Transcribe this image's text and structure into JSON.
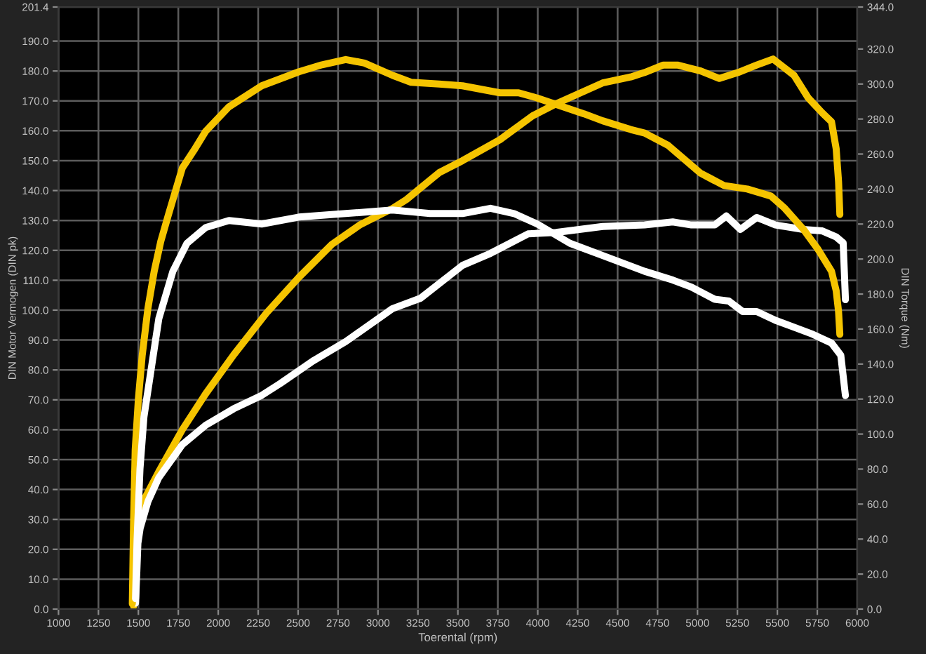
{
  "chart_data": {
    "type": "line",
    "xlabel": "Toerental (rpm)",
    "ylabel": "DIN Motor Vermogen (DIN pk)",
    "y2label": "DIN Torque (Nm)",
    "xlim": [
      1000,
      6000
    ],
    "xticks": [
      1000,
      1250,
      1500,
      1750,
      2000,
      2250,
      2500,
      2750,
      3000,
      3250,
      3500,
      3750,
      4000,
      4250,
      4500,
      4750,
      5000,
      5250,
      5500,
      5750,
      6000
    ],
    "ylim": [
      0,
      201.4
    ],
    "yticks": [
      {
        "value": 0,
        "label": "0.0"
      },
      {
        "value": 10,
        "label": "10.0"
      },
      {
        "value": 20,
        "label": "20.0"
      },
      {
        "value": 30,
        "label": "30.0"
      },
      {
        "value": 40,
        "label": "40.0"
      },
      {
        "value": 50,
        "label": "50.0"
      },
      {
        "value": 60,
        "label": "60.0"
      },
      {
        "value": 70,
        "label": "70.0"
      },
      {
        "value": 80,
        "label": "80.0"
      },
      {
        "value": 90,
        "label": "90.0"
      },
      {
        "value": 100,
        "label": "100.0"
      },
      {
        "value": 110,
        "label": "110.0"
      },
      {
        "value": 120,
        "label": "120.0"
      },
      {
        "value": 130,
        "label": "130.0"
      },
      {
        "value": 140,
        "label": "140.0"
      },
      {
        "value": 150,
        "label": "150.0"
      },
      {
        "value": 160,
        "label": "160.0"
      },
      {
        "value": 170,
        "label": "170.0"
      },
      {
        "value": 180,
        "label": "180.0"
      },
      {
        "value": 190,
        "label": "190.0"
      },
      {
        "value": 201.4,
        "label": "201.4"
      }
    ],
    "y2lim": [
      0,
      344
    ],
    "y2ticks": [
      {
        "value": 0,
        "label": "0.0"
      },
      {
        "value": 20,
        "label": "20.0"
      },
      {
        "value": 40,
        "label": "40.0"
      },
      {
        "value": 60,
        "label": "60.0"
      },
      {
        "value": 80,
        "label": "80.0"
      },
      {
        "value": 100,
        "label": "100.0"
      },
      {
        "value": 120,
        "label": "120.0"
      },
      {
        "value": 140,
        "label": "140.0"
      },
      {
        "value": 160,
        "label": "160.0"
      },
      {
        "value": 180,
        "label": "180.0"
      },
      {
        "value": 200,
        "label": "200.0"
      },
      {
        "value": 220,
        "label": "220.0"
      },
      {
        "value": 240,
        "label": "240.0"
      },
      {
        "value": 260,
        "label": "260.0"
      },
      {
        "value": 280,
        "label": "280.0"
      },
      {
        "value": 300,
        "label": "300.0"
      },
      {
        "value": 320,
        "label": "320.0"
      },
      {
        "value": 344,
        "label": "344.0"
      }
    ],
    "grid": true,
    "line_style": "solid",
    "series": [
      {
        "color": "#f5c400",
        "x": [
          1470,
          1478,
          1482,
          1530,
          1628,
          1775,
          1921,
          2096,
          2301,
          2505,
          2711,
          2886,
          3090,
          3178,
          3383,
          3529,
          3763,
          3968,
          4114,
          4406,
          4582,
          4669,
          4786,
          4874,
          5020,
          5137,
          5254,
          5371,
          5473,
          5605,
          5693,
          5781,
          5839,
          5868,
          5883,
          5891
        ],
        "values": [
          1,
          15,
          28.5,
          36,
          46,
          60,
          72,
          85,
          99,
          111,
          122,
          128.5,
          134,
          137,
          146,
          150,
          157,
          165,
          169,
          176,
          178,
          179.5,
          182,
          182,
          180,
          177.5,
          179.5,
          182,
          184,
          178.5,
          171,
          166,
          163,
          154,
          143,
          132
        ]
      },
      {
        "color": "#f5c400",
        "axis": "y2",
        "x": [
          1462,
          1470,
          1480,
          1500,
          1524,
          1560,
          1599,
          1640,
          1687,
          1775,
          1847,
          1921,
          2067,
          2272,
          2505,
          2650,
          2798,
          2915,
          3090,
          3207,
          3383,
          3529,
          3763,
          3880,
          3997,
          4289,
          4406,
          4582,
          4669,
          4815,
          5020,
          5166,
          5312,
          5459,
          5546,
          5663,
          5751,
          5839,
          5868,
          5883,
          5891
        ],
        "values": [
          3,
          50,
          91,
          120,
          145,
          172,
          193,
          210,
          225,
          252,
          262,
          273,
          287,
          299,
          307,
          311,
          314,
          312,
          305,
          301,
          300,
          299,
          295,
          295,
          292,
          283,
          279,
          274,
          272,
          265,
          249,
          242,
          240,
          236,
          229,
          217,
          206,
          193,
          182,
          170,
          157
        ]
      },
      {
        "color": "#ffffff",
        "x": [
          1482,
          1490,
          1497,
          1511,
          1560,
          1628,
          1775,
          1921,
          2096,
          2272,
          2389,
          2593,
          2798,
          3090,
          3266,
          3529,
          3704,
          3939,
          4114,
          4406,
          4669,
          4845,
          4962,
          5108,
          5181,
          5268,
          5371,
          5488,
          5663,
          5781,
          5868,
          5912,
          5926
        ],
        "values": [
          2,
          12,
          22,
          27,
          36,
          44,
          55,
          61.5,
          67,
          71.5,
          75.5,
          83,
          89.5,
          100.5,
          104,
          115,
          119,
          125.5,
          126,
          128,
          128.5,
          129.5,
          128.5,
          128.5,
          131.5,
          127,
          131,
          128.5,
          127,
          126.5,
          124.5,
          122.5,
          103.5
        ]
      },
      {
        "color": "#ffffff",
        "axis": "y2",
        "x": [
          1482,
          1492,
          1510,
          1535,
          1570,
          1628,
          1716,
          1804,
          1921,
          2067,
          2272,
          2505,
          2798,
          3090,
          3325,
          3529,
          3704,
          3851,
          3997,
          4202,
          4406,
          4669,
          4845,
          4962,
          5108,
          5196,
          5283,
          5371,
          5488,
          5605,
          5722,
          5839,
          5897,
          5926
        ],
        "values": [
          6,
          40,
          80,
          110,
          131,
          166,
          193,
          209,
          218,
          222,
          220,
          224,
          226,
          228,
          226,
          226,
          229,
          226,
          220,
          209,
          202,
          193,
          188,
          184,
          177,
          176,
          170,
          170,
          165,
          161,
          157,
          152,
          145,
          122
        ]
      }
    ]
  }
}
